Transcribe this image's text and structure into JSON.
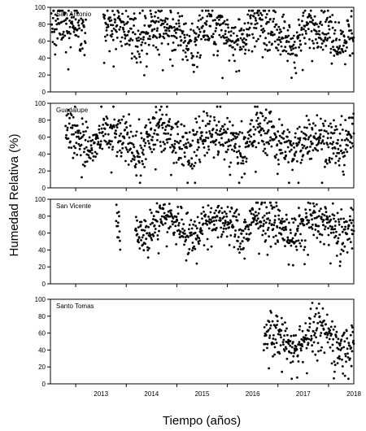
{
  "figure": {
    "ylabel": "Humedad Relativa (%)",
    "xlabel": "Tiempo (años)"
  },
  "chart_data": [
    {
      "type": "scatter",
      "title": "San Antonio",
      "xlim": [
        2012.5,
        2018.5
      ],
      "ylim": [
        0,
        100
      ],
      "yticks": [
        0,
        20,
        40,
        60,
        80,
        100
      ],
      "series": [
        {
          "coverage": [
            [
              2012.52,
              2013.2
            ],
            [
              2013.55,
              2018.5
            ]
          ],
          "mean_humidity": [
            [
              2012.5,
              80
            ],
            [
              2012.9,
              80
            ],
            [
              2013.2,
              76
            ],
            [
              2013.6,
              78
            ],
            [
              2014.0,
              72
            ],
            [
              2014.3,
              66
            ],
            [
              2014.6,
              80
            ],
            [
              2015.0,
              70
            ],
            [
              2015.3,
              58
            ],
            [
              2015.6,
              80
            ],
            [
              2016.0,
              72
            ],
            [
              2016.3,
              64
            ],
            [
              2016.6,
              82
            ],
            [
              2017.0,
              74
            ],
            [
              2017.3,
              52
            ],
            [
              2017.6,
              80
            ],
            [
              2018.0,
              72
            ],
            [
              2018.3,
              60
            ],
            [
              2018.5,
              78
            ]
          ],
          "spread": 18
        }
      ]
    },
    {
      "type": "scatter",
      "title": "Guadalupe",
      "xlim": [
        2012.5,
        2018.5
      ],
      "ylim": [
        0,
        100
      ],
      "yticks": [
        0,
        20,
        40,
        60,
        80,
        100
      ],
      "series": [
        {
          "coverage": [
            [
              2012.8,
              2018.5
            ]
          ],
          "mean_humidity": [
            [
              2012.8,
              72
            ],
            [
              2013.0,
              66
            ],
            [
              2013.3,
              44
            ],
            [
              2013.6,
              66
            ],
            [
              2014.0,
              58
            ],
            [
              2014.3,
              44
            ],
            [
              2014.6,
              70
            ],
            [
              2015.0,
              60
            ],
            [
              2015.3,
              46
            ],
            [
              2015.6,
              70
            ],
            [
              2016.0,
              60
            ],
            [
              2016.3,
              46
            ],
            [
              2016.6,
              74
            ],
            [
              2017.0,
              62
            ],
            [
              2017.3,
              40
            ],
            [
              2017.6,
              66
            ],
            [
              2018.0,
              58
            ],
            [
              2018.3,
              48
            ],
            [
              2018.5,
              70
            ]
          ],
          "spread": 20
        }
      ]
    },
    {
      "type": "scatter",
      "title": "San Vicente",
      "xlim": [
        2012.5,
        2018.5
      ],
      "ylim": [
        0,
        100
      ],
      "yticks": [
        0,
        20,
        40,
        60,
        80,
        100
      ],
      "series": [
        {
          "coverage": [
            [
              2013.8,
              2013.88
            ],
            [
              2014.18,
              2018.5
            ]
          ],
          "mean_humidity": [
            [
              2013.8,
              68
            ],
            [
              2013.9,
              66
            ],
            [
              2014.2,
              70
            ],
            [
              2014.4,
              58
            ],
            [
              2014.7,
              80
            ],
            [
              2015.0,
              74
            ],
            [
              2015.3,
              56
            ],
            [
              2015.6,
              78
            ],
            [
              2016.0,
              74
            ],
            [
              2016.3,
              58
            ],
            [
              2016.6,
              82
            ],
            [
              2017.0,
              74
            ],
            [
              2017.3,
              56
            ],
            [
              2017.6,
              78
            ],
            [
              2018.0,
              72
            ],
            [
              2018.3,
              58
            ],
            [
              2018.5,
              76
            ]
          ],
          "spread": 16
        }
      ]
    },
    {
      "type": "scatter",
      "title": "Santo Tomas",
      "xlim": [
        2012.5,
        2018.5
      ],
      "ylim": [
        0,
        100
      ],
      "yticks": [
        0,
        20,
        40,
        60,
        80,
        100
      ],
      "xticks": [
        "2013",
        "2014",
        "2015",
        "2016",
        "2017",
        "2018"
      ],
      "series": [
        {
          "coverage": [
            [
              2016.72,
              2018.5
            ]
          ],
          "mean_humidity": [
            [
              2016.72,
              62
            ],
            [
              2017.0,
              60
            ],
            [
              2017.3,
              40
            ],
            [
              2017.6,
              64
            ],
            [
              2018.0,
              60
            ],
            [
              2018.3,
              42
            ],
            [
              2018.5,
              62
            ]
          ],
          "spread": 18
        }
      ]
    }
  ]
}
